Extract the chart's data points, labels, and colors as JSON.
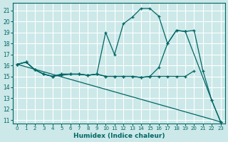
{
  "xlabel": "Humidex (Indice chaleur)",
  "bg_color": "#cce8e8",
  "grid_color": "#ffffff",
  "line_color": "#006666",
  "xlim": [
    -0.5,
    23.5
  ],
  "ylim": [
    10.7,
    21.7
  ],
  "yticks": [
    11,
    12,
    13,
    14,
    15,
    16,
    17,
    18,
    19,
    20,
    21
  ],
  "xticks": [
    0,
    1,
    2,
    3,
    4,
    5,
    6,
    7,
    8,
    9,
    10,
    11,
    12,
    13,
    14,
    15,
    16,
    17,
    18,
    19,
    20,
    21,
    22,
    23
  ],
  "series": [
    {
      "x": [
        0,
        1,
        2,
        3,
        4,
        5,
        6,
        7,
        8,
        9,
        10,
        11,
        12,
        13,
        14,
        15,
        16,
        17,
        18,
        19,
        22,
        23
      ],
      "y": [
        16.1,
        16.3,
        15.6,
        15.2,
        15.0,
        15.1,
        15.2,
        15.2,
        15.1,
        15.2,
        19.0,
        17.0,
        19.8,
        20.4,
        21.2,
        21.2,
        20.5,
        18.0,
        19.2,
        19.1,
        12.8,
        10.85
      ]
    },
    {
      "x": [
        0,
        1,
        2,
        3,
        4,
        5,
        6,
        7,
        8,
        9,
        10,
        11,
        12,
        13,
        14,
        15,
        16,
        17,
        18,
        19,
        20,
        21,
        22,
        23
      ],
      "y": [
        16.1,
        16.3,
        15.6,
        15.2,
        15.0,
        15.2,
        15.2,
        15.2,
        15.1,
        15.2,
        15.0,
        15.0,
        15.0,
        15.0,
        14.9,
        15.0,
        15.8,
        18.0,
        19.2,
        19.1,
        19.2,
        15.5,
        12.8,
        10.85
      ]
    },
    {
      "x": [
        0,
        1,
        2,
        3,
        4,
        5,
        6,
        7,
        8,
        9,
        10,
        11,
        12,
        13,
        14,
        15,
        16,
        17,
        18,
        19,
        20
      ],
      "y": [
        16.1,
        16.3,
        15.6,
        15.2,
        15.0,
        15.2,
        15.2,
        15.2,
        15.1,
        15.2,
        15.0,
        15.0,
        15.0,
        15.0,
        14.9,
        15.0,
        15.0,
        15.0,
        15.0,
        15.0,
        15.5
      ]
    },
    {
      "x": [
        0,
        23
      ],
      "y": [
        16.1,
        10.85
      ]
    }
  ]
}
